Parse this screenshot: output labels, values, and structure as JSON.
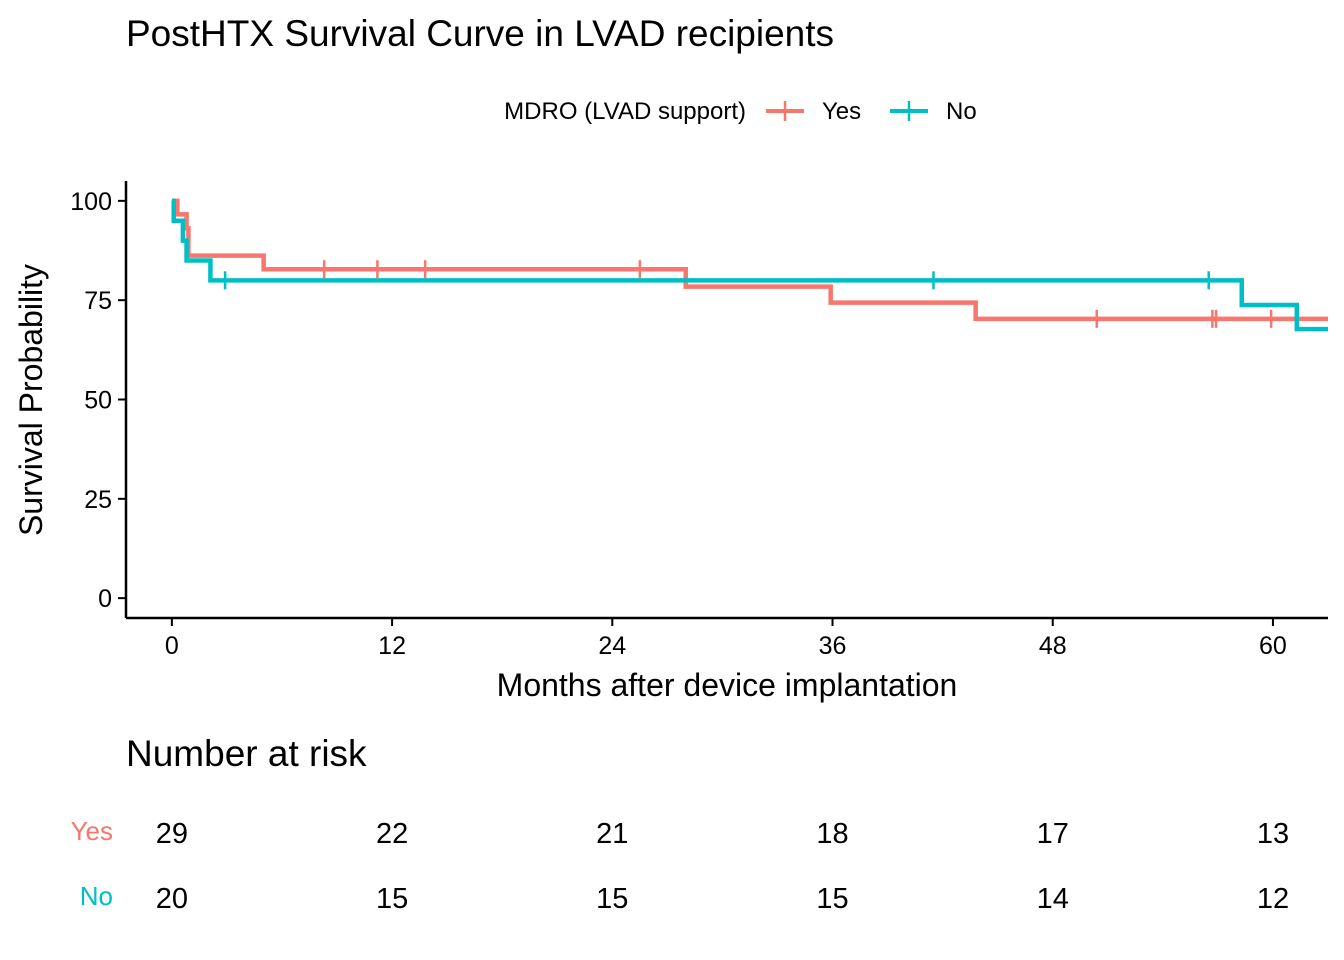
{
  "chart_data": {
    "type": "line",
    "title": "PostHTX Survival Curve in LVAD recipients",
    "xlabel": "Months after device implantation",
    "ylabel": "Survival Probability",
    "xlim": [
      -2.5,
      63
    ],
    "ylim": [
      -5,
      105
    ],
    "x_ticks": [
      0,
      12,
      24,
      36,
      48,
      60
    ],
    "x_tick_labels": [
      "0",
      "12",
      "24",
      "36",
      "48",
      "60"
    ],
    "y_ticks": [
      0,
      25,
      50,
      75,
      100
    ],
    "y_tick_labels": [
      "0",
      "25",
      "50",
      "75",
      "100"
    ],
    "grid": false,
    "legend": {
      "title": "MDRO (LVAD support)",
      "position": "top",
      "entries": [
        "Yes",
        "No"
      ]
    },
    "series": [
      {
        "name": "Yes",
        "color": "#F8766D",
        "steps": [
          [
            0,
            100
          ],
          [
            0.3,
            96.6
          ],
          [
            0.8,
            93.1
          ],
          [
            0.9,
            86.2
          ],
          [
            5.0,
            82.8
          ],
          [
            28.0,
            78.4
          ],
          [
            35.9,
            74.4
          ],
          [
            43.8,
            70.3
          ],
          [
            63,
            70.3
          ]
        ],
        "censor_times": [
          8.3,
          11.2,
          13.8,
          25.5,
          50.4,
          56.7,
          56.9,
          59.9
        ]
      },
      {
        "name": "No",
        "color": "#00BFC4",
        "steps": [
          [
            0,
            100
          ],
          [
            0.1,
            95.0
          ],
          [
            0.6,
            90.0
          ],
          [
            0.8,
            85.0
          ],
          [
            2.1,
            80.0
          ],
          [
            58.3,
            73.8
          ],
          [
            61.3,
            67.7
          ],
          [
            63,
            67.7
          ]
        ],
        "censor_times": [
          2.9,
          41.5,
          56.5
        ]
      }
    ],
    "risk_table": {
      "title": "Number at risk",
      "times": [
        0,
        12,
        24,
        36,
        48,
        60
      ],
      "rows": [
        {
          "label": "Yes",
          "color": "#F8766D",
          "values": [
            "29",
            "22",
            "21",
            "18",
            "17",
            "13"
          ]
        },
        {
          "label": "No",
          "color": "#00BFC4",
          "values": [
            "20",
            "15",
            "15",
            "15",
            "14",
            "12"
          ]
        }
      ]
    }
  }
}
